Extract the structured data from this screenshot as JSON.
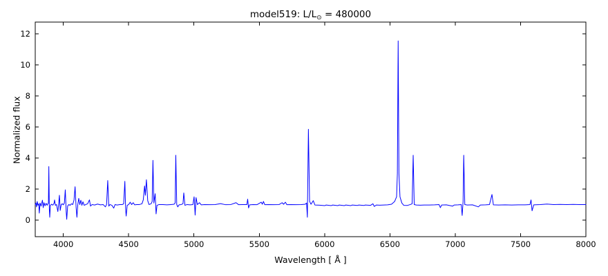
{
  "chart_data": {
    "type": "line",
    "title": "model519: L/L⊙ = 480000",
    "title_parts": {
      "prefix": "model519: L/L",
      "solar_symbol": "⊙",
      "suffix": " = 480000"
    },
    "xlabel": "Wavelength [ Å ]",
    "ylabel": "Normalized flux",
    "xlim": [
      3785,
      8000
    ],
    "ylim": [
      -1.07,
      12.76
    ],
    "xticks": [
      4000,
      4500,
      5000,
      5500,
      6000,
      6500,
      7000,
      7500,
      8000
    ],
    "yticks": [
      0,
      2,
      4,
      6,
      8,
      10,
      12
    ],
    "grid": false,
    "legend": null,
    "line_color": "#0000ff",
    "axis_color": "#000000",
    "background_color": "#ffffff",
    "baseline_flux": 1.0,
    "emission_peaks": [
      {
        "wavelength": 3889,
        "flux": 3.45
      },
      {
        "wavelength": 3970,
        "flux": 1.6
      },
      {
        "wavelength": 4015,
        "flux": 1.95
      },
      {
        "wavelength": 4090,
        "flux": 2.15
      },
      {
        "wavelength": 4200,
        "flux": 1.3
      },
      {
        "wavelength": 4340,
        "flux": 2.55
      },
      {
        "wavelength": 4471,
        "flux": 2.5
      },
      {
        "wavelength": 4636,
        "flux": 2.6
      },
      {
        "wavelength": 4686,
        "flux": 3.85
      },
      {
        "wavelength": 4861,
        "flux": 4.2
      },
      {
        "wavelength": 4922,
        "flux": 1.75
      },
      {
        "wavelength": 5016,
        "flux": 1.45
      },
      {
        "wavelength": 5411,
        "flux": 1.35
      },
      {
        "wavelength": 5876,
        "flux": 5.85
      },
      {
        "wavelength": 6563,
        "flux": 11.55
      },
      {
        "wavelength": 6678,
        "flux": 4.2
      },
      {
        "wavelength": 7065,
        "flux": 4.2
      },
      {
        "wavelength": 7281,
        "flux": 1.65
      }
    ],
    "series": [
      {
        "name": "model spectrum",
        "points": [
          [
            3785,
            1.0
          ],
          [
            3790,
            1.1
          ],
          [
            3795,
            0.85
          ],
          [
            3800,
            1.2
          ],
          [
            3806,
            0.95
          ],
          [
            3812,
            1.05
          ],
          [
            3816,
            0.45
          ],
          [
            3822,
            1.1
          ],
          [
            3830,
            0.9
          ],
          [
            3840,
            1.28
          ],
          [
            3846,
            0.8
          ],
          [
            3852,
            1.12
          ],
          [
            3860,
            0.92
          ],
          [
            3868,
            1.08
          ],
          [
            3876,
            0.95
          ],
          [
            3882,
            1.05
          ],
          [
            3886,
            1.1
          ],
          [
            3889,
            3.45
          ],
          [
            3893,
            0.7
          ],
          [
            3896,
            0.18
          ],
          [
            3901,
            0.95
          ],
          [
            3910,
            1.02
          ],
          [
            3920,
            0.96
          ],
          [
            3929,
            1.08
          ],
          [
            3933,
            1.3
          ],
          [
            3939,
            0.95
          ],
          [
            3948,
            1.0
          ],
          [
            3958,
            0.55
          ],
          [
            3964,
            1.0
          ],
          [
            3970,
            1.6
          ],
          [
            3976,
            0.62
          ],
          [
            3984,
            1.0
          ],
          [
            3992,
            1.05
          ],
          [
            4000,
            0.98
          ],
          [
            4008,
            1.1
          ],
          [
            4015,
            1.95
          ],
          [
            4022,
            0.55
          ],
          [
            4026,
            0.05
          ],
          [
            4033,
            0.9
          ],
          [
            4042,
            1.0
          ],
          [
            4052,
            0.95
          ],
          [
            4062,
            1.05
          ],
          [
            4072,
            1.0
          ],
          [
            4082,
            1.3
          ],
          [
            4090,
            2.15
          ],
          [
            4098,
            0.8
          ],
          [
            4104,
            0.18
          ],
          [
            4111,
            1.0
          ],
          [
            4118,
            1.4
          ],
          [
            4126,
            1.0
          ],
          [
            4134,
            1.28
          ],
          [
            4142,
            0.95
          ],
          [
            4150,
            1.18
          ],
          [
            4160,
            0.95
          ],
          [
            4172,
            1.0
          ],
          [
            4186,
            1.05
          ],
          [
            4200,
            1.3
          ],
          [
            4208,
            0.9
          ],
          [
            4220,
            1.0
          ],
          [
            4240,
            0.97
          ],
          [
            4262,
            1.03
          ],
          [
            4284,
            0.98
          ],
          [
            4305,
            1.0
          ],
          [
            4322,
            0.85
          ],
          [
            4331,
            1.0
          ],
          [
            4340,
            2.55
          ],
          [
            4348,
            0.9
          ],
          [
            4357,
            1.0
          ],
          [
            4372,
            0.95
          ],
          [
            4386,
            0.77
          ],
          [
            4396,
            1.0
          ],
          [
            4412,
            0.97
          ],
          [
            4432,
            1.0
          ],
          [
            4452,
            1.0
          ],
          [
            4462,
            1.05
          ],
          [
            4471,
            2.5
          ],
          [
            4477,
            0.7
          ],
          [
            4481,
            0.26
          ],
          [
            4489,
            0.95
          ],
          [
            4500,
            1.0
          ],
          [
            4512,
            1.15
          ],
          [
            4523,
            1.0
          ],
          [
            4535,
            1.12
          ],
          [
            4546,
            0.98
          ],
          [
            4562,
            1.0
          ],
          [
            4582,
            1.0
          ],
          [
            4602,
            1.05
          ],
          [
            4612,
            1.3
          ],
          [
            4622,
            2.2
          ],
          [
            4628,
            1.6
          ],
          [
            4636,
            2.6
          ],
          [
            4646,
            1.25
          ],
          [
            4656,
            1.0
          ],
          [
            4672,
            1.05
          ],
          [
            4680,
            1.2
          ],
          [
            4686,
            3.85
          ],
          [
            4693,
            1.1
          ],
          [
            4703,
            1.7
          ],
          [
            4710,
            0.4
          ],
          [
            4717,
            0.95
          ],
          [
            4733,
            1.0
          ],
          [
            4763,
            1.0
          ],
          [
            4793,
            0.98
          ],
          [
            4823,
            1.0
          ],
          [
            4847,
            1.02
          ],
          [
            4856,
            1.1
          ],
          [
            4861,
            4.18
          ],
          [
            4868,
            1.0
          ],
          [
            4876,
            0.85
          ],
          [
            4886,
            0.98
          ],
          [
            4902,
            1.0
          ],
          [
            4916,
            1.05
          ],
          [
            4922,
            1.75
          ],
          [
            4931,
            0.95
          ],
          [
            4947,
            1.0
          ],
          [
            4971,
            0.98
          ],
          [
            4992,
            1.0
          ],
          [
            5001,
            1.5
          ],
          [
            5006,
            0.8
          ],
          [
            5009,
            0.32
          ],
          [
            5016,
            1.45
          ],
          [
            5026,
            1.0
          ],
          [
            5042,
            1.12
          ],
          [
            5056,
            0.98
          ],
          [
            5082,
            1.0
          ],
          [
            5122,
            0.99
          ],
          [
            5162,
            1.0
          ],
          [
            5203,
            1.06
          ],
          [
            5242,
            0.99
          ],
          [
            5282,
            1.0
          ],
          [
            5322,
            1.12
          ],
          [
            5342,
            0.99
          ],
          [
            5372,
            1.0
          ],
          [
            5405,
            1.0
          ],
          [
            5411,
            1.35
          ],
          [
            5418,
            0.78
          ],
          [
            5426,
            0.98
          ],
          [
            5452,
            1.0
          ],
          [
            5482,
            0.99
          ],
          [
            5515,
            1.15
          ],
          [
            5523,
            1.02
          ],
          [
            5532,
            1.2
          ],
          [
            5542,
            0.99
          ],
          [
            5572,
            1.0
          ],
          [
            5612,
            0.99
          ],
          [
            5652,
            1.0
          ],
          [
            5675,
            1.12
          ],
          [
            5686,
            1.02
          ],
          [
            5700,
            1.15
          ],
          [
            5711,
            0.99
          ],
          [
            5742,
            1.0
          ],
          [
            5782,
            0.99
          ],
          [
            5822,
            1.0
          ],
          [
            5851,
            1.02
          ],
          [
            5862,
            1.1
          ],
          [
            5868,
            0.18
          ],
          [
            5876,
            5.85
          ],
          [
            5885,
            1.2
          ],
          [
            5896,
            1.02
          ],
          [
            5913,
            1.25
          ],
          [
            5926,
            0.97
          ],
          [
            5962,
            0.96
          ],
          [
            6000,
            0.93
          ],
          [
            6012,
            0.97
          ],
          [
            6050,
            0.93
          ],
          [
            6062,
            0.97
          ],
          [
            6100,
            0.93
          ],
          [
            6112,
            0.97
          ],
          [
            6150,
            0.93
          ],
          [
            6162,
            0.97
          ],
          [
            6200,
            0.93
          ],
          [
            6212,
            0.97
          ],
          [
            6250,
            0.94
          ],
          [
            6262,
            0.97
          ],
          [
            6300,
            0.94
          ],
          [
            6312,
            0.97
          ],
          [
            6352,
            0.95
          ],
          [
            6370,
            1.05
          ],
          [
            6380,
            0.88
          ],
          [
            6396,
            0.97
          ],
          [
            6422,
            0.96
          ],
          [
            6452,
            0.97
          ],
          [
            6482,
            0.98
          ],
          [
            6512,
            1.02
          ],
          [
            6536,
            1.2
          ],
          [
            6551,
            1.5
          ],
          [
            6557,
            3.0
          ],
          [
            6563,
            11.55
          ],
          [
            6569,
            3.0
          ],
          [
            6577,
            1.5
          ],
          [
            6591,
            1.1
          ],
          [
            6606,
            0.95
          ],
          [
            6632,
            0.94
          ],
          [
            6656,
            1.0
          ],
          [
            6670,
            1.05
          ],
          [
            6678,
            4.18
          ],
          [
            6686,
            1.0
          ],
          [
            6702,
            0.97
          ],
          [
            6732,
            0.96
          ],
          [
            6762,
            0.97
          ],
          [
            6802,
            0.97
          ],
          [
            6842,
            0.98
          ],
          [
            6876,
            1.0
          ],
          [
            6886,
            0.8
          ],
          [
            6896,
            0.97
          ],
          [
            6932,
            0.98
          ],
          [
            6980,
            0.9
          ],
          [
            6992,
            0.97
          ],
          [
            7022,
            0.98
          ],
          [
            7046,
            1.0
          ],
          [
            7053,
            0.3
          ],
          [
            7060,
            1.2
          ],
          [
            7065,
            4.18
          ],
          [
            7073,
            1.0
          ],
          [
            7092,
            0.97
          ],
          [
            7132,
            0.98
          ],
          [
            7177,
            0.85
          ],
          [
            7192,
            0.97
          ],
          [
            7232,
            0.98
          ],
          [
            7262,
            1.0
          ],
          [
            7281,
            1.65
          ],
          [
            7292,
            0.98
          ],
          [
            7332,
            0.97
          ],
          [
            7382,
            0.98
          ],
          [
            7432,
            0.97
          ],
          [
            7482,
            0.98
          ],
          [
            7532,
            0.98
          ],
          [
            7572,
            1.0
          ],
          [
            7580,
            1.3
          ],
          [
            7588,
            0.6
          ],
          [
            7601,
            0.98
          ],
          [
            7652,
            1.0
          ],
          [
            7702,
            1.03
          ],
          [
            7752,
            1.0
          ],
          [
            7802,
            1.01
          ],
          [
            7852,
            1.0
          ],
          [
            7902,
            1.01
          ],
          [
            7952,
            1.0
          ],
          [
            8000,
            1.0
          ]
        ]
      }
    ]
  }
}
